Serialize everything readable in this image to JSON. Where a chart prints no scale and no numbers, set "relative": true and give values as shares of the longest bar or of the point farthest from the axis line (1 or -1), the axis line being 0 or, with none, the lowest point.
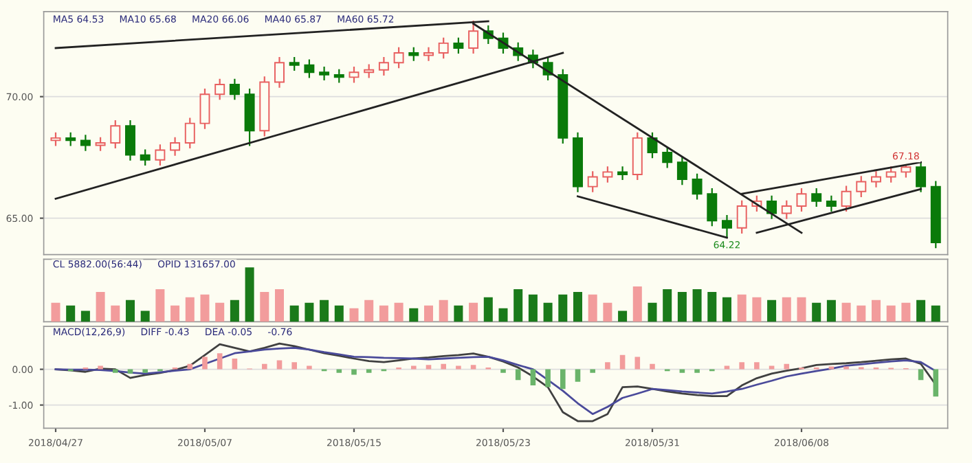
{
  "chart_data": [
    {
      "type": "candlestick",
      "categories": [
        null,
        null,
        null,
        null,
        null,
        null,
        null,
        null,
        null,
        null,
        null,
        null,
        null,
        null,
        null,
        null,
        null,
        null,
        null,
        null,
        null,
        null,
        null,
        null,
        null,
        null,
        null,
        null,
        null,
        null,
        null,
        null,
        null,
        null,
        null,
        null,
        null,
        null,
        null,
        null,
        null,
        null,
        null,
        null,
        null,
        null,
        null,
        null,
        null,
        null,
        null,
        null,
        null,
        null,
        null,
        null,
        null,
        null,
        null,
        null
      ],
      "ohlc": [
        [
          68.2,
          68.5,
          68.0,
          68.3
        ],
        [
          68.3,
          68.5,
          68.0,
          68.2
        ],
        [
          68.2,
          68.4,
          67.8,
          68.0
        ],
        [
          68.0,
          68.3,
          67.8,
          68.1
        ],
        [
          68.1,
          69.0,
          67.9,
          68.8
        ],
        [
          68.8,
          69.0,
          67.4,
          67.6
        ],
        [
          67.6,
          67.8,
          67.2,
          67.4
        ],
        [
          67.4,
          68.0,
          67.2,
          67.8
        ],
        [
          67.8,
          68.3,
          67.6,
          68.1
        ],
        [
          68.1,
          69.1,
          67.9,
          68.9
        ],
        [
          68.9,
          70.3,
          68.7,
          70.1
        ],
        [
          70.1,
          70.7,
          69.9,
          70.5
        ],
        [
          70.5,
          70.7,
          69.9,
          70.1
        ],
        [
          70.1,
          70.3,
          68.0,
          68.6
        ],
        [
          68.6,
          70.8,
          68.4,
          70.6
        ],
        [
          70.6,
          71.6,
          70.4,
          71.4
        ],
        [
          71.4,
          71.6,
          71.1,
          71.3
        ],
        [
          71.3,
          71.5,
          70.8,
          71.0
        ],
        [
          71.0,
          71.2,
          70.7,
          70.9
        ],
        [
          70.9,
          71.1,
          70.6,
          70.8
        ],
        [
          70.8,
          71.2,
          70.6,
          71.0
        ],
        [
          71.0,
          71.3,
          70.8,
          71.1
        ],
        [
          71.1,
          71.6,
          70.9,
          71.4
        ],
        [
          71.4,
          72.0,
          71.2,
          71.8
        ],
        [
          71.8,
          72.0,
          71.5,
          71.7
        ],
        [
          71.7,
          72.0,
          71.5,
          71.8
        ],
        [
          71.8,
          72.4,
          71.6,
          72.2
        ],
        [
          72.2,
          72.4,
          71.8,
          72.0
        ],
        [
          72.0,
          73.1,
          71.8,
          72.7
        ],
        [
          72.7,
          72.9,
          72.2,
          72.4
        ],
        [
          72.4,
          72.6,
          71.8,
          72.0
        ],
        [
          72.0,
          72.2,
          71.5,
          71.7
        ],
        [
          71.7,
          71.9,
          71.2,
          71.4
        ],
        [
          71.4,
          71.6,
          70.7,
          70.9
        ],
        [
          70.9,
          71.1,
          68.1,
          68.3
        ],
        [
          68.3,
          68.5,
          66.1,
          66.3
        ],
        [
          66.3,
          66.9,
          66.1,
          66.7
        ],
        [
          66.7,
          67.1,
          66.5,
          66.9
        ],
        [
          66.9,
          67.1,
          66.6,
          66.8
        ],
        [
          66.8,
          68.5,
          66.6,
          68.3
        ],
        [
          68.3,
          68.5,
          67.5,
          67.7
        ],
        [
          67.7,
          67.9,
          67.1,
          67.3
        ],
        [
          67.3,
          67.5,
          66.4,
          66.6
        ],
        [
          66.6,
          66.8,
          65.8,
          66.0
        ],
        [
          66.0,
          66.2,
          64.7,
          64.9
        ],
        [
          64.9,
          65.1,
          64.22,
          64.6
        ],
        [
          64.6,
          65.7,
          64.4,
          65.5
        ],
        [
          65.5,
          65.9,
          65.3,
          65.7
        ],
        [
          65.7,
          65.9,
          65.0,
          65.2
        ],
        [
          65.2,
          65.7,
          65.0,
          65.5
        ],
        [
          65.5,
          66.2,
          65.3,
          66.0
        ],
        [
          66.0,
          66.2,
          65.5,
          65.7
        ],
        [
          65.7,
          65.9,
          65.3,
          65.5
        ],
        [
          65.5,
          66.3,
          65.3,
          66.1
        ],
        [
          66.1,
          66.7,
          65.9,
          66.5
        ],
        [
          66.5,
          66.9,
          66.3,
          66.7
        ],
        [
          66.7,
          67.1,
          66.5,
          66.9
        ],
        [
          66.9,
          67.18,
          66.7,
          67.1
        ],
        [
          67.1,
          67.3,
          66.1,
          66.3
        ],
        [
          66.3,
          66.5,
          63.8,
          64.0
        ]
      ],
      "series": [
        {
          "type": "line",
          "color": "#222222",
          "values": [
            72.0,
            null,
            null,
            null,
            null,
            null,
            null,
            null,
            null,
            null,
            null,
            null,
            null,
            null,
            null,
            null,
            null,
            null,
            null,
            null,
            null,
            null,
            null,
            null,
            null,
            null,
            null,
            null,
            null,
            73.1,
            null,
            null,
            null,
            null,
            null,
            null,
            null,
            null,
            null,
            null,
            null,
            null,
            null,
            null,
            null,
            null,
            null,
            null,
            null,
            null,
            null,
            null,
            null,
            null,
            null,
            null,
            null,
            null,
            null,
            null
          ]
        },
        {
          "type": "line",
          "color": "#222222",
          "values": [
            65.8,
            null,
            null,
            null,
            null,
            null,
            null,
            null,
            null,
            null,
            null,
            null,
            null,
            null,
            null,
            null,
            null,
            null,
            null,
            null,
            null,
            null,
            null,
            null,
            null,
            null,
            null,
            null,
            null,
            null,
            null,
            null,
            null,
            null,
            71.8,
            null,
            null,
            null,
            null,
            null,
            null,
            null,
            null,
            null,
            null,
            null,
            null,
            null,
            null,
            null,
            null,
            null,
            null,
            null,
            null,
            null,
            null,
            null,
            null,
            null
          ]
        },
        {
          "type": "line",
          "color": "#222222",
          "values": [
            null,
            null,
            null,
            null,
            null,
            null,
            null,
            null,
            null,
            null,
            null,
            null,
            null,
            null,
            null,
            null,
            null,
            null,
            null,
            null,
            null,
            null,
            null,
            null,
            null,
            null,
            null,
            null,
            73.0,
            null,
            null,
            null,
            null,
            null,
            null,
            null,
            null,
            null,
            null,
            null,
            null,
            null,
            null,
            null,
            null,
            null,
            null,
            null,
            null,
            null,
            64.4,
            null,
            null,
            null,
            null,
            null,
            null,
            null,
            null,
            null
          ]
        },
        {
          "type": "line",
          "color": "#222222",
          "values": [
            null,
            null,
            null,
            null,
            null,
            null,
            null,
            null,
            null,
            null,
            null,
            null,
            null,
            null,
            null,
            null,
            null,
            null,
            null,
            null,
            null,
            null,
            null,
            null,
            null,
            null,
            null,
            null,
            null,
            null,
            null,
            null,
            null,
            null,
            null,
            65.9,
            null,
            null,
            null,
            null,
            null,
            null,
            null,
            null,
            null,
            64.2,
            null,
            null,
            null,
            null,
            null,
            null,
            null,
            null,
            null,
            null,
            null,
            null,
            null,
            null
          ]
        },
        {
          "type": "line",
          "color": "#222222",
          "values": [
            null,
            null,
            null,
            null,
            null,
            null,
            null,
            null,
            null,
            null,
            null,
            null,
            null,
            null,
            null,
            null,
            null,
            null,
            null,
            null,
            null,
            null,
            null,
            null,
            null,
            null,
            null,
            null,
            null,
            null,
            null,
            null,
            null,
            null,
            null,
            null,
            null,
            null,
            null,
            null,
            null,
            null,
            null,
            null,
            null,
            null,
            66.0,
            null,
            null,
            null,
            null,
            null,
            null,
            null,
            null,
            null,
            null,
            null,
            67.3,
            null
          ]
        },
        {
          "type": "line",
          "color": "#222222",
          "values": [
            null,
            null,
            null,
            null,
            null,
            null,
            null,
            null,
            null,
            null,
            null,
            null,
            null,
            null,
            null,
            null,
            null,
            null,
            null,
            null,
            null,
            null,
            null,
            null,
            null,
            null,
            null,
            null,
            null,
            null,
            null,
            null,
            null,
            null,
            null,
            null,
            null,
            null,
            null,
            null,
            null,
            null,
            null,
            null,
            null,
            null,
            null,
            64.4,
            null,
            null,
            null,
            null,
            null,
            null,
            null,
            null,
            null,
            null,
            66.2,
            null
          ]
        }
      ],
      "ylim": [
        63.5,
        73.5
      ],
      "yticks": [
        {
          "value": 65,
          "label": "65.00"
        },
        {
          "value": 70,
          "label": "70.00"
        }
      ],
      "grid": "y",
      "tick_labels": "y",
      "annotations": [
        "MA5 64.53",
        "MA10 65.68",
        "MA20 66.06",
        "MA40 65.87",
        "MA60 65.72",
        {
          "text": "64.22",
          "y": 64.22
        },
        {
          "text": "67.18",
          "y": 67.18
        }
      ]
    },
    {
      "type": "bar",
      "relative": true,
      "tick_labels": false,
      "categories": [
        null,
        null,
        null,
        null,
        null,
        null,
        null,
        null,
        null,
        null,
        null,
        null,
        null,
        null,
        null,
        null,
        null,
        null,
        null,
        null,
        null,
        null,
        null,
        null,
        null,
        null,
        null,
        null,
        null,
        null,
        null,
        null,
        null,
        null,
        null,
        null,
        null,
        null,
        null,
        null,
        null,
        null,
        null,
        null,
        null,
        null,
        null,
        null,
        null,
        null,
        null,
        null,
        null,
        null,
        null,
        null,
        null,
        null,
        null,
        null
      ],
      "values": [
        0.35,
        0.3,
        0.2,
        0.55,
        0.3,
        0.4,
        0.2,
        0.6,
        0.3,
        0.45,
        0.5,
        0.35,
        0.4,
        1.0,
        0.55,
        0.6,
        0.3,
        0.35,
        0.4,
        0.3,
        0.25,
        0.4,
        0.3,
        0.35,
        0.25,
        0.3,
        0.4,
        0.3,
        0.35,
        0.45,
        0.25,
        0.6,
        0.5,
        0.35,
        0.5,
        0.55,
        0.5,
        0.35,
        0.2,
        0.65,
        0.35,
        0.6,
        0.55,
        0.6,
        0.55,
        0.45,
        0.5,
        0.45,
        0.4,
        0.45,
        0.45,
        0.35,
        0.4,
        0.35,
        0.3,
        0.4,
        0.3,
        0.35,
        0.4,
        0.3
      ],
      "colors": [
        "#f29c9c",
        "#1a7a1a",
        "#1a7a1a",
        "#f29c9c",
        "#f29c9c",
        "#1a7a1a",
        "#1a7a1a",
        "#f29c9c",
        "#f29c9c",
        "#f29c9c",
        "#f29c9c",
        "#f29c9c",
        "#1a7a1a",
        "#1a7a1a",
        "#f29c9c",
        "#f29c9c",
        "#1a7a1a",
        "#1a7a1a",
        "#1a7a1a",
        "#1a7a1a",
        "#f29c9c",
        "#f29c9c",
        "#f29c9c",
        "#f29c9c",
        "#1a7a1a",
        "#f29c9c",
        "#f29c9c",
        "#1a7a1a",
        "#f29c9c",
        "#1a7a1a",
        "#1a7a1a",
        "#1a7a1a",
        "#1a7a1a",
        "#1a7a1a",
        "#1a7a1a",
        "#1a7a1a",
        "#f29c9c",
        "#f29c9c",
        "#1a7a1a",
        "#f29c9c",
        "#1a7a1a",
        "#1a7a1a",
        "#1a7a1a",
        "#1a7a1a",
        "#1a7a1a",
        "#1a7a1a",
        "#f29c9c",
        "#f29c9c",
        "#1a7a1a",
        "#f29c9c",
        "#f29c9c",
        "#1a7a1a",
        "#1a7a1a",
        "#f29c9c",
        "#f29c9c",
        "#f29c9c",
        "#f29c9c",
        "#f29c9c",
        "#1a7a1a",
        "#1a7a1a"
      ],
      "annotations": [
        "CL 5882.00(56:44)",
        "OPID 131657.00"
      ]
    },
    {
      "type": "bar",
      "categories": [
        "2018/04/27",
        null,
        null,
        null,
        null,
        null,
        null,
        null,
        null,
        null,
        "2018/05/07",
        null,
        null,
        null,
        null,
        null,
        null,
        null,
        null,
        null,
        "2018/05/15",
        null,
        null,
        null,
        null,
        null,
        null,
        null,
        null,
        null,
        "2018/05/23",
        null,
        null,
        null,
        null,
        null,
        null,
        null,
        null,
        null,
        "2018/05/31",
        null,
        null,
        null,
        null,
        null,
        null,
        null,
        null,
        null,
        "2018/06/08",
        null,
        null,
        null,
        null,
        null,
        null,
        null,
        null,
        null
      ],
      "values": [
        0,
        -0.05,
        0.05,
        0.1,
        -0.1,
        -0.12,
        -0.1,
        -0.05,
        0.05,
        0.15,
        0.35,
        0.45,
        0.3,
        0.02,
        0.15,
        0.25,
        0.2,
        0.1,
        -0.05,
        -0.1,
        -0.15,
        -0.1,
        -0.05,
        0.05,
        0.1,
        0.12,
        0.15,
        0.1,
        0.12,
        0.05,
        -0.1,
        -0.3,
        -0.45,
        -0.5,
        -0.55,
        -0.35,
        -0.1,
        0.2,
        0.4,
        0.35,
        0.15,
        -0.05,
        -0.1,
        -0.1,
        -0.05,
        0.1,
        0.2,
        0.2,
        0.1,
        0.15,
        0.05,
        0.05,
        0.08,
        0.08,
        0.06,
        0.05,
        0.04,
        0.03,
        -0.3,
        -0.76
      ],
      "colors": [
        "#f29c9c",
        "#6ab46a",
        "#f29c9c",
        "#f29c9c",
        "#6ab46a",
        "#6ab46a",
        "#6ab46a",
        "#6ab46a",
        "#f29c9c",
        "#f29c9c",
        "#f29c9c",
        "#f29c9c",
        "#f29c9c",
        "#f29c9c",
        "#f29c9c",
        "#f29c9c",
        "#f29c9c",
        "#f29c9c",
        "#6ab46a",
        "#6ab46a",
        "#6ab46a",
        "#6ab46a",
        "#6ab46a",
        "#f29c9c",
        "#f29c9c",
        "#f29c9c",
        "#f29c9c",
        "#f29c9c",
        "#f29c9c",
        "#f29c9c",
        "#6ab46a",
        "#6ab46a",
        "#6ab46a",
        "#6ab46a",
        "#6ab46a",
        "#6ab46a",
        "#6ab46a",
        "#f29c9c",
        "#f29c9c",
        "#f29c9c",
        "#f29c9c",
        "#6ab46a",
        "#6ab46a",
        "#6ab46a",
        "#6ab46a",
        "#f29c9c",
        "#f29c9c",
        "#f29c9c",
        "#f29c9c",
        "#f29c9c",
        "#f29c9c",
        "#f29c9c",
        "#f29c9c",
        "#f29c9c",
        "#f29c9c",
        "#f29c9c",
        "#f29c9c",
        "#f29c9c",
        "#6ab46a",
        "#6ab46a"
      ],
      "series": [
        {
          "type": "line",
          "color": "#404040",
          "values": [
            0.0,
            -0.03,
            -0.07,
            0.02,
            0.0,
            -0.24,
            -0.16,
            -0.1,
            -0.02,
            0.1,
            0.4,
            0.7,
            0.6,
            0.5,
            0.6,
            0.72,
            0.65,
            0.55,
            0.45,
            0.38,
            0.3,
            0.23,
            0.2,
            0.25,
            0.3,
            0.33,
            0.37,
            0.4,
            0.44,
            0.35,
            0.22,
            0.05,
            -0.2,
            -0.5,
            -1.2,
            -1.45,
            -1.45,
            -1.25,
            -0.5,
            -0.48,
            -0.55,
            -0.62,
            -0.68,
            -0.72,
            -0.75,
            -0.75,
            -0.45,
            -0.25,
            -0.12,
            -0.04,
            0.03,
            0.12,
            0.15,
            0.17,
            0.2,
            0.24,
            0.28,
            0.3,
            0.15,
            -0.43
          ]
        },
        {
          "type": "line",
          "color": "#4a4a9a",
          "values": [
            0.0,
            -0.01,
            -0.01,
            -0.02,
            -0.05,
            -0.09,
            -0.12,
            -0.08,
            -0.04,
            0.0,
            0.15,
            0.3,
            0.45,
            0.5,
            0.55,
            0.58,
            0.6,
            0.55,
            0.48,
            0.42,
            0.35,
            0.34,
            0.32,
            0.31,
            0.3,
            0.28,
            0.3,
            0.32,
            0.34,
            0.35,
            0.25,
            0.12,
            0.0,
            -0.3,
            -0.6,
            -0.95,
            -1.25,
            -1.05,
            -0.8,
            -0.68,
            -0.55,
            -0.58,
            -0.62,
            -0.65,
            -0.68,
            -0.62,
            -0.55,
            -0.43,
            -0.32,
            -0.2,
            -0.12,
            -0.05,
            0.02,
            0.1,
            0.14,
            0.18,
            0.22,
            0.25,
            0.2,
            -0.05
          ]
        }
      ],
      "ylim": [
        -1.65,
        1.2
      ],
      "yticks": [
        {
          "value": -1,
          "label": "-1.00"
        },
        {
          "value": 0,
          "label": "0.00"
        }
      ],
      "grid": "y",
      "annotations": [
        "MACD(12,26,9)",
        "DIFF -0.43",
        "DEA -0.05",
        "-0.76"
      ]
    }
  ]
}
